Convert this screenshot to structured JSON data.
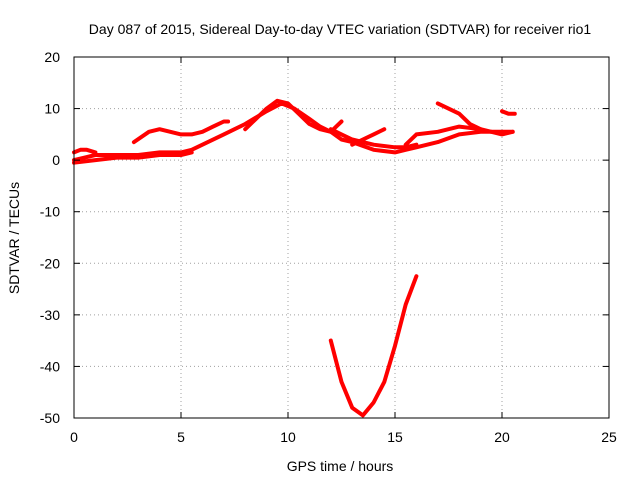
{
  "chart_data": {
    "type": "scatter",
    "title": "Day 087 of 2015, Sidereal Day-to-day VTEC variation (SDTVAR) for receiver rio1",
    "xlabel": "GPS time / hours",
    "ylabel": "SDTVAR / TECUs",
    "xlim": [
      0,
      25
    ],
    "ylim": [
      -50,
      20
    ],
    "xticks": [
      0,
      5,
      10,
      15,
      20,
      25
    ],
    "yticks": [
      20,
      10,
      0,
      -10,
      -20,
      -30,
      -40,
      -50
    ],
    "grid": true,
    "legend": "none",
    "color": "#ff0000",
    "series": [
      {
        "x": [
          0,
          0.5,
          1,
          2,
          3,
          4,
          5,
          5.5,
          6,
          7,
          8,
          9,
          9.7,
          10.3,
          11,
          11.5,
          12,
          12.5,
          13,
          14,
          15,
          15.5,
          16,
          17,
          18,
          19,
          19.5,
          20,
          20.5
        ],
        "y": [
          0,
          0.5,
          1,
          1,
          1,
          1.5,
          1.5,
          2,
          3,
          5,
          7,
          9.5,
          11,
          10,
          8,
          6.5,
          5.5,
          4,
          3.5,
          2,
          1.5,
          2,
          2.5,
          3.5,
          5,
          5.5,
          5.5,
          5.5,
          5.5
        ]
      },
      {
        "x": [
          0,
          1,
          2,
          3,
          4,
          5,
          5.5
        ],
        "y": [
          -0.5,
          0,
          0.5,
          0.5,
          1,
          1,
          1.5
        ]
      },
      {
        "x": [
          0,
          0.3,
          0.6,
          1
        ],
        "y": [
          1.5,
          2,
          2,
          1.5
        ]
      },
      {
        "x": [
          2.8,
          3.5,
          4,
          4.5,
          5,
          5.5,
          6,
          6.5,
          7,
          7.2
        ],
        "y": [
          3.5,
          5.5,
          6,
          5.5,
          5,
          5,
          5.5,
          6.5,
          7.5,
          7.5
        ]
      },
      {
        "x": [
          8,
          8.5,
          9,
          9.5,
          10,
          10.5,
          11,
          11.5,
          12,
          12.5
        ],
        "y": [
          6,
          8,
          10,
          11.5,
          11,
          9,
          7,
          6,
          5.5,
          7.5
        ]
      },
      {
        "x": [
          12,
          12.5,
          13,
          14,
          15,
          15.5,
          16
        ],
        "y": [
          6,
          5,
          4,
          3,
          2.5,
          2.5,
          3
        ]
      },
      {
        "x": [
          13,
          13.5,
          14,
          14.5
        ],
        "y": [
          3,
          4,
          5,
          6
        ]
      },
      {
        "x": [
          15.5,
          16,
          17,
          18,
          19,
          20,
          20.5
        ],
        "y": [
          3,
          5,
          5.5,
          6.5,
          6,
          5,
          5.5
        ]
      },
      {
        "x": [
          17,
          17.5,
          18,
          18.5,
          19
        ],
        "y": [
          11,
          10,
          9,
          7,
          6
        ]
      },
      {
        "x": [
          20,
          20.3,
          20.6
        ],
        "y": [
          9.5,
          9,
          9
        ]
      },
      {
        "x": [
          12,
          12.5,
          13,
          13.5,
          14,
          14.5,
          15,
          15.5,
          16
        ],
        "y": [
          -35,
          -43,
          -48,
          -49.5,
          -47,
          -43,
          -36,
          -28,
          -22.5
        ]
      }
    ]
  }
}
